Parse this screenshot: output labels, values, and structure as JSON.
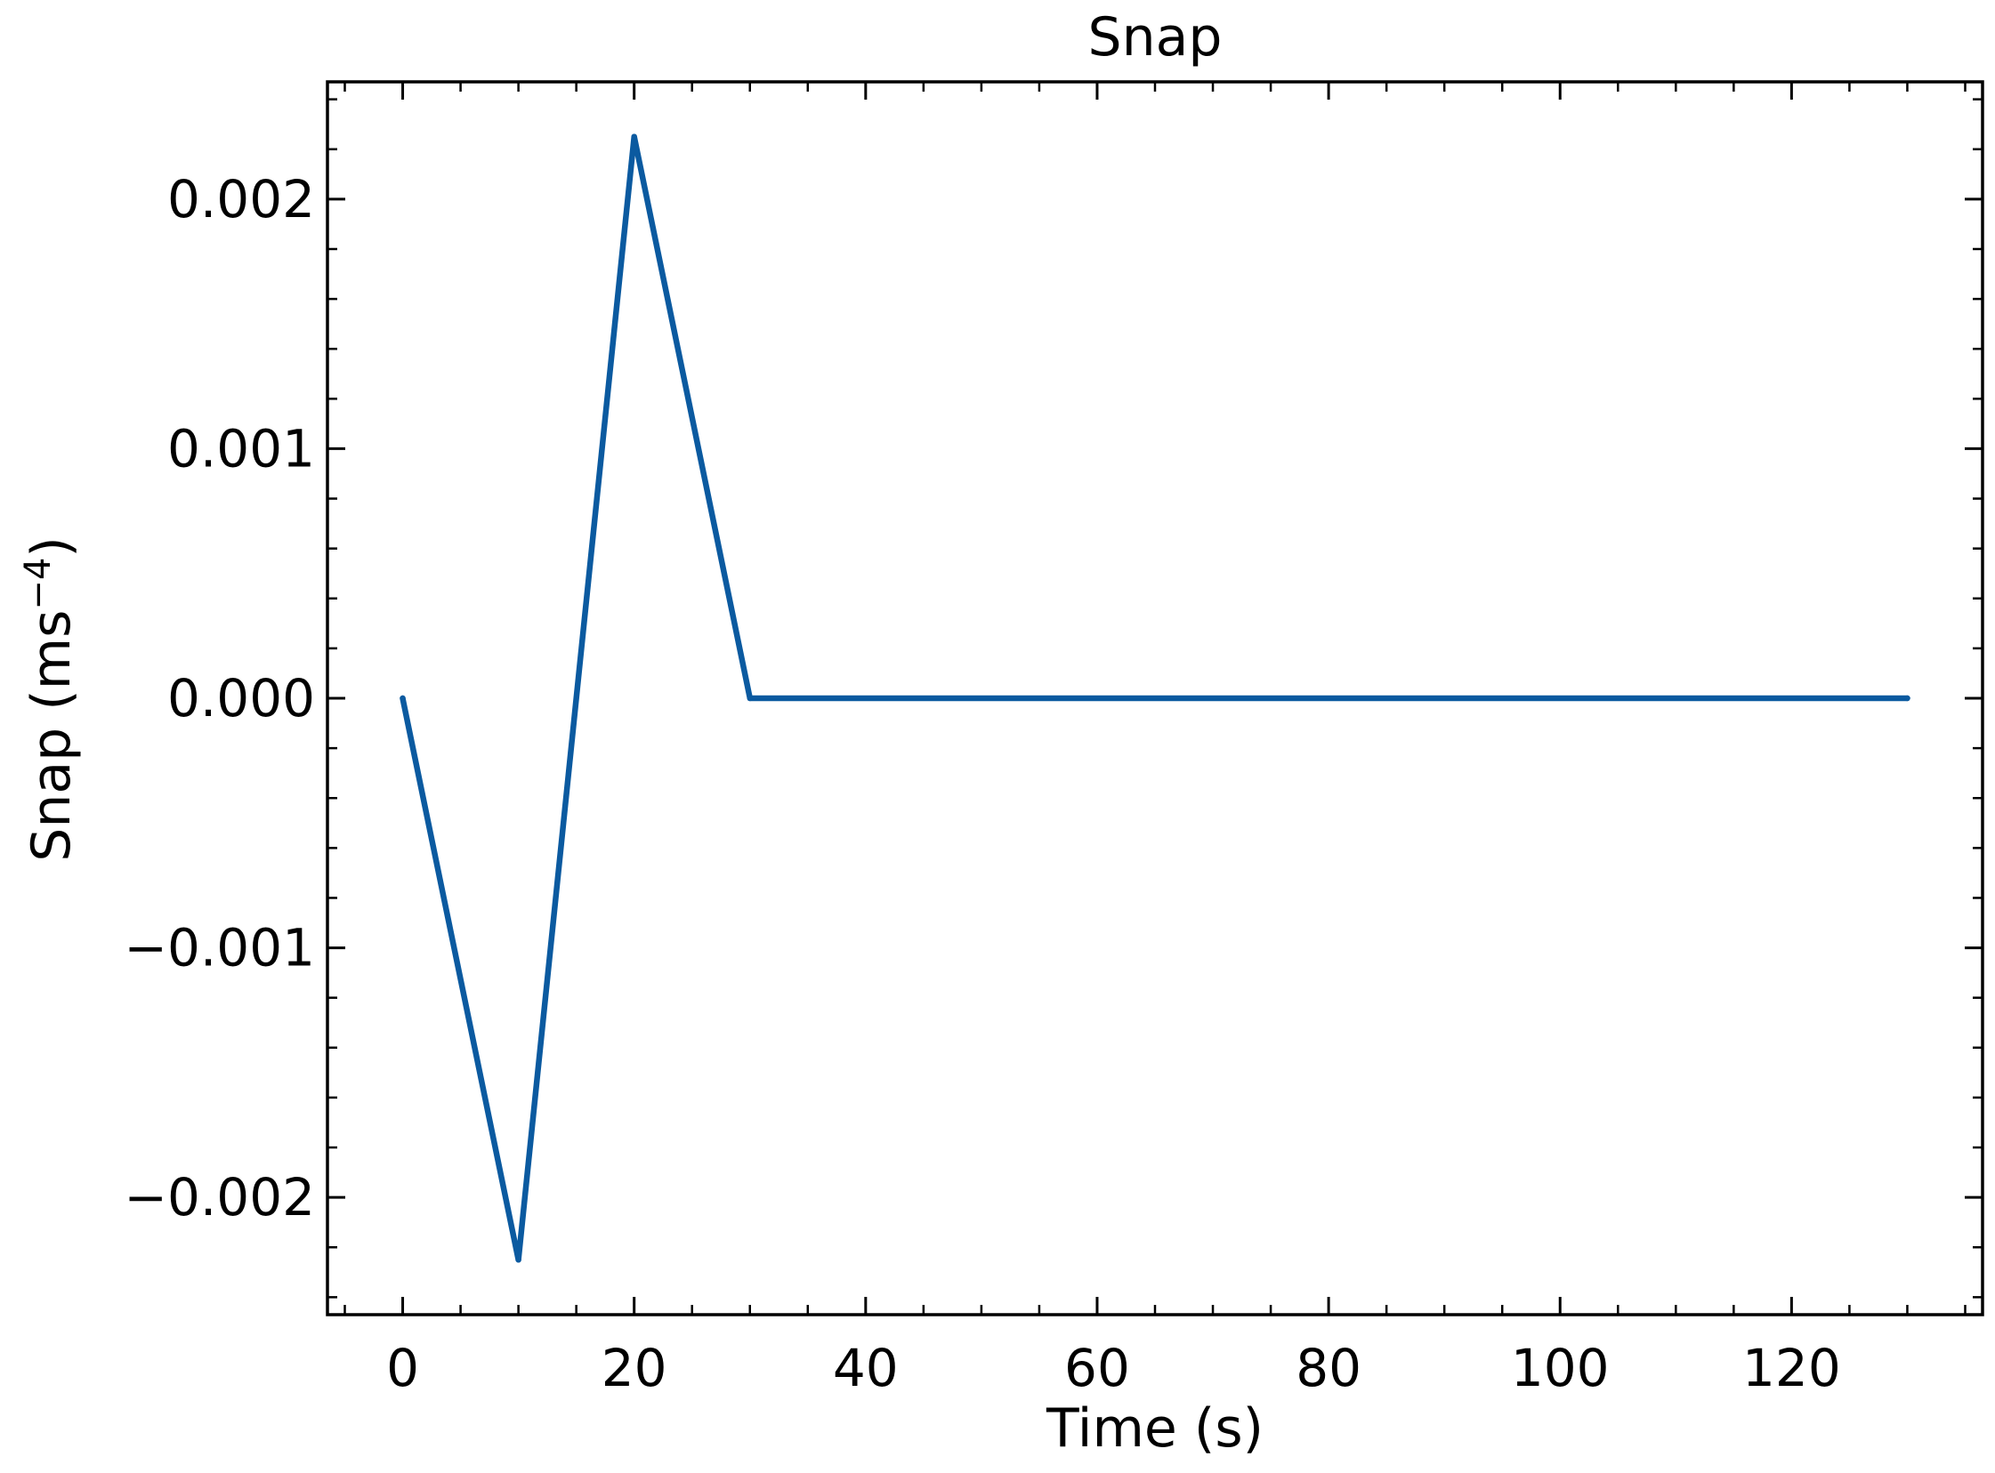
{
  "chart_data": {
    "type": "line",
    "title": "Snap",
    "xlabel": "Time (s)",
    "ylabel_base": "Snap (ms",
    "ylabel_exp": "−4",
    "ylabel_close": ")",
    "xlim": [
      -6.5,
      136.5
    ],
    "ylim": [
      -0.00247,
      0.00247
    ],
    "x_ticks": [
      0,
      20,
      40,
      60,
      80,
      100,
      120
    ],
    "x_tick_labels": [
      "0",
      "20",
      "40",
      "60",
      "80",
      "100",
      "120"
    ],
    "x_minor_step": 5,
    "y_ticks": [
      -0.002,
      -0.001,
      0.0,
      0.001,
      0.002
    ],
    "y_tick_labels": [
      "−0.002",
      "−0.001",
      "0.000",
      "0.001",
      "0.002"
    ],
    "y_minor_step": 0.0002,
    "grid": false,
    "series": [
      {
        "color": "#0b5aa0",
        "x": [
          0,
          10,
          20,
          30,
          130
        ],
        "y": [
          0.0,
          -0.00225,
          0.00225,
          0.0,
          0.0
        ]
      }
    ]
  }
}
